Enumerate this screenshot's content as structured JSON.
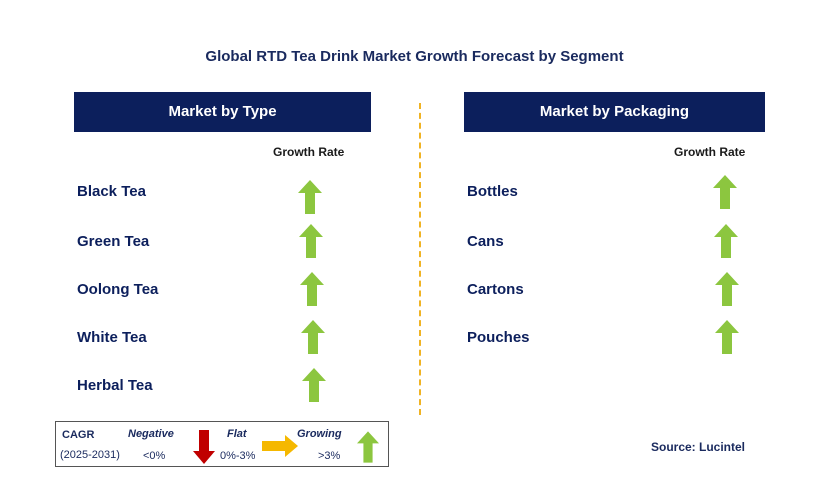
{
  "title": "Global RTD Tea Drink Market Growth Forecast by Segment",
  "left_panel": {
    "header": "Market by Type",
    "growth_label": "Growth Rate",
    "rows": [
      {
        "label": "Black Tea",
        "trend": "growing"
      },
      {
        "label": "Green Tea",
        "trend": "growing"
      },
      {
        "label": "Oolong Tea",
        "trend": "growing"
      },
      {
        "label": "White Tea",
        "trend": "growing"
      },
      {
        "label": "Herbal Tea",
        "trend": "growing"
      }
    ]
  },
  "right_panel": {
    "header": "Market by Packaging",
    "growth_label": "Growth Rate",
    "rows": [
      {
        "label": "Bottles",
        "trend": "growing"
      },
      {
        "label": "Cans",
        "trend": "growing"
      },
      {
        "label": "Cartons",
        "trend": "growing"
      },
      {
        "label": "Pouches",
        "trend": "growing"
      }
    ]
  },
  "legend": {
    "cagr": "CAGR",
    "period": "(2025-2031)",
    "negative_label": "Negative",
    "negative_range": "<0%",
    "flat_label": "Flat",
    "flat_range": "0%-3%",
    "growing_label": "Growing",
    "growing_range": ">3%"
  },
  "source": "Source: Lucintel",
  "colors": {
    "header_bg": "#0c1f5c",
    "up_arrow": "#8cc63f",
    "down_arrow": "#c00000",
    "flat_arrow": "#f5b800",
    "divider": "#f0b323"
  }
}
